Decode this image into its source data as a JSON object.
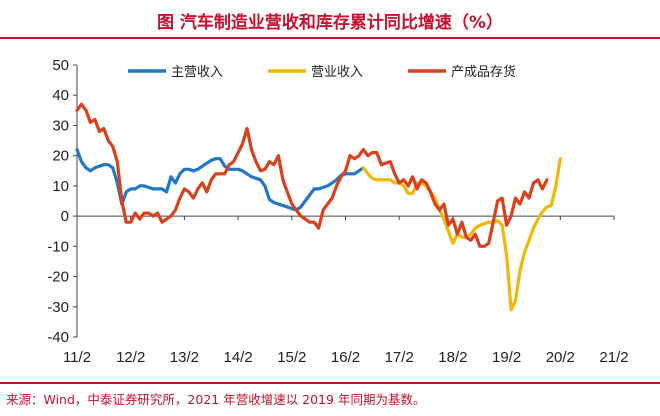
{
  "header": {
    "title": "图  汽车制造业营收和库存累计同比增速（%）"
  },
  "footer": {
    "source": "来源：Wind，中泰证券研究所，2021 年营收增速以 2019 年同期为基数。"
  },
  "chart_data": {
    "type": "line",
    "title": "图  汽车制造业营收和库存累计同比增速（%）",
    "xlabel": "",
    "ylabel": "",
    "ylim": [
      -40,
      50
    ],
    "yticks": [
      -40,
      -30,
      -20,
      -10,
      0,
      10,
      20,
      30,
      40,
      50
    ],
    "x_range": [
      0,
      120
    ],
    "xticks": [
      {
        "x": 0,
        "label": "11/2"
      },
      {
        "x": 12,
        "label": "12/2"
      },
      {
        "x": 24,
        "label": "13/2"
      },
      {
        "x": 36,
        "label": "14/2"
      },
      {
        "x": 48,
        "label": "15/2"
      },
      {
        "x": 60,
        "label": "16/2"
      },
      {
        "x": 72,
        "label": "17/2"
      },
      {
        "x": 84,
        "label": "18/2"
      },
      {
        "x": 96,
        "label": "19/2"
      },
      {
        "x": 108,
        "label": "20/2"
      },
      {
        "x": 120,
        "label": "21/2"
      }
    ],
    "grid": false,
    "legend_position": "top",
    "series": [
      {
        "name": "主营收入",
        "color": "#1f77c6",
        "points": [
          [
            0,
            22
          ],
          [
            1,
            18
          ],
          [
            2,
            16
          ],
          [
            3,
            15
          ],
          [
            4,
            16
          ],
          [
            5,
            16.5
          ],
          [
            6,
            17
          ],
          [
            7,
            17
          ],
          [
            8,
            16
          ],
          [
            9,
            11
          ],
          [
            10,
            4
          ],
          [
            11,
            8
          ],
          [
            12,
            9
          ],
          [
            13,
            9
          ],
          [
            14,
            10
          ],
          [
            15,
            10
          ],
          [
            16,
            9.5
          ],
          [
            17,
            9
          ],
          [
            18,
            9
          ],
          [
            19,
            9
          ],
          [
            20,
            8
          ],
          [
            21,
            13
          ],
          [
            22,
            11
          ],
          [
            23,
            14
          ],
          [
            24,
            15.5
          ],
          [
            25,
            15.5
          ],
          [
            26,
            15
          ],
          [
            27,
            15.5
          ],
          [
            28,
            16.5
          ],
          [
            29,
            17.5
          ],
          [
            30,
            18.5
          ],
          [
            31,
            19
          ],
          [
            32,
            19
          ],
          [
            33,
            16.5
          ],
          [
            34,
            15.5
          ],
          [
            35,
            15.5
          ],
          [
            36,
            15.5
          ],
          [
            37,
            15
          ],
          [
            38,
            14
          ],
          [
            39,
            13
          ],
          [
            40,
            12.5
          ],
          [
            41,
            12
          ],
          [
            42,
            10
          ],
          [
            43,
            5.5
          ],
          [
            44,
            4.5
          ],
          [
            45,
            4
          ],
          [
            46,
            3.5
          ],
          [
            47,
            3
          ],
          [
            48,
            2.5
          ],
          [
            49,
            2
          ],
          [
            50,
            3
          ],
          [
            51,
            5
          ],
          [
            52,
            7
          ],
          [
            53,
            9
          ],
          [
            54,
            9
          ],
          [
            55,
            9.5
          ],
          [
            56,
            10
          ],
          [
            57,
            11
          ],
          [
            58,
            12
          ],
          [
            59,
            13.5
          ],
          [
            60,
            14
          ],
          [
            61,
            14
          ],
          [
            62,
            14
          ],
          [
            63,
            15
          ],
          [
            64,
            16
          ]
        ]
      },
      {
        "name": "营业收入",
        "color": "#f2b705",
        "points": [
          [
            64,
            16
          ],
          [
            65,
            14
          ],
          [
            66,
            12.5
          ],
          [
            67,
            12
          ],
          [
            68,
            12
          ],
          [
            69,
            12
          ],
          [
            70,
            12
          ],
          [
            71,
            11
          ],
          [
            72,
            11
          ],
          [
            73,
            10
          ],
          [
            74,
            7.5
          ],
          [
            75,
            7.5
          ],
          [
            76,
            11
          ],
          [
            77,
            11
          ],
          [
            78,
            10
          ],
          [
            79,
            8
          ],
          [
            80,
            6
          ],
          [
            81,
            2
          ],
          [
            82,
            -1
          ],
          [
            83,
            -5
          ],
          [
            84,
            -9
          ],
          [
            85,
            -6
          ],
          [
            86,
            -7
          ],
          [
            87,
            -7
          ],
          [
            88,
            -6
          ],
          [
            89,
            -4
          ],
          [
            90,
            -3
          ],
          [
            91,
            -2.5
          ],
          [
            92,
            -2
          ],
          [
            93,
            -2
          ],
          [
            94,
            -1.5
          ],
          [
            95,
            -3
          ],
          [
            96,
            -13
          ],
          [
            97,
            -31
          ],
          [
            98,
            -28
          ],
          [
            99,
            -18
          ],
          [
            100,
            -12
          ],
          [
            101,
            -8
          ],
          [
            102,
            -4
          ],
          [
            103,
            -1
          ],
          [
            104,
            1.5
          ],
          [
            105,
            3
          ],
          [
            106,
            3.5
          ],
          [
            107,
            10
          ],
          [
            108,
            19
          ]
        ]
      },
      {
        "name": "产成品存货",
        "color": "#d9401b",
        "points": [
          [
            0,
            35
          ],
          [
            1,
            37
          ],
          [
            2,
            35
          ],
          [
            3,
            31
          ],
          [
            4,
            32
          ],
          [
            5,
            28
          ],
          [
            6,
            29
          ],
          [
            7,
            25
          ],
          [
            8,
            23
          ],
          [
            9,
            18
          ],
          [
            10,
            5
          ],
          [
            11,
            -2
          ],
          [
            12,
            -2
          ],
          [
            13,
            1
          ],
          [
            14,
            -1
          ],
          [
            15,
            1
          ],
          [
            16,
            1
          ],
          [
            17,
            0
          ],
          [
            18,
            1
          ],
          [
            19,
            -2
          ],
          [
            20,
            -1
          ],
          [
            21,
            0
          ],
          [
            22,
            2
          ],
          [
            23,
            6
          ],
          [
            24,
            9
          ],
          [
            25,
            8
          ],
          [
            26,
            6
          ],
          [
            27,
            9
          ],
          [
            28,
            11
          ],
          [
            29,
            8
          ],
          [
            30,
            12
          ],
          [
            31,
            14
          ],
          [
            32,
            14
          ],
          [
            33,
            14
          ],
          [
            34,
            17
          ],
          [
            35,
            18
          ],
          [
            36,
            21
          ],
          [
            37,
            24
          ],
          [
            38,
            29
          ],
          [
            39,
            22
          ],
          [
            40,
            18
          ],
          [
            41,
            15
          ],
          [
            42,
            15.5
          ],
          [
            43,
            18
          ],
          [
            44,
            17
          ],
          [
            45,
            20
          ],
          [
            46,
            12
          ],
          [
            47,
            8
          ],
          [
            48,
            4
          ],
          [
            49,
            2
          ],
          [
            50,
            0
          ],
          [
            51,
            -1
          ],
          [
            52,
            -2
          ],
          [
            53,
            -2
          ],
          [
            54,
            -4
          ],
          [
            55,
            2
          ],
          [
            56,
            4
          ],
          [
            57,
            6
          ],
          [
            58,
            10
          ],
          [
            59,
            13
          ],
          [
            60,
            15
          ],
          [
            61,
            20
          ],
          [
            62,
            19
          ],
          [
            63,
            20
          ],
          [
            64,
            22
          ],
          [
            65,
            20
          ],
          [
            66,
            21
          ],
          [
            67,
            21
          ],
          [
            68,
            17
          ],
          [
            69,
            17.5
          ],
          [
            70,
            18
          ],
          [
            71,
            14
          ],
          [
            72,
            11
          ],
          [
            73,
            12
          ],
          [
            74,
            10
          ],
          [
            75,
            13
          ],
          [
            76,
            9
          ],
          [
            77,
            12
          ],
          [
            78,
            11
          ],
          [
            79,
            8
          ],
          [
            80,
            4
          ],
          [
            81,
            2
          ],
          [
            82,
            4
          ],
          [
            83,
            -3
          ],
          [
            84,
            -1
          ],
          [
            85,
            -6
          ],
          [
            86,
            -2
          ],
          [
            87,
            -7
          ],
          [
            88,
            -8
          ],
          [
            89,
            -6
          ],
          [
            90,
            -10
          ],
          [
            91,
            -10
          ],
          [
            92,
            -9
          ],
          [
            93,
            -2
          ],
          [
            94,
            5
          ],
          [
            95,
            6
          ],
          [
            96,
            -3
          ],
          [
            97,
            0
          ],
          [
            98,
            6
          ],
          [
            99,
            4
          ],
          [
            100,
            8
          ],
          [
            101,
            6
          ],
          [
            102,
            11
          ],
          [
            103,
            12
          ],
          [
            104,
            9
          ],
          [
            105,
            12
          ]
        ]
      }
    ]
  }
}
